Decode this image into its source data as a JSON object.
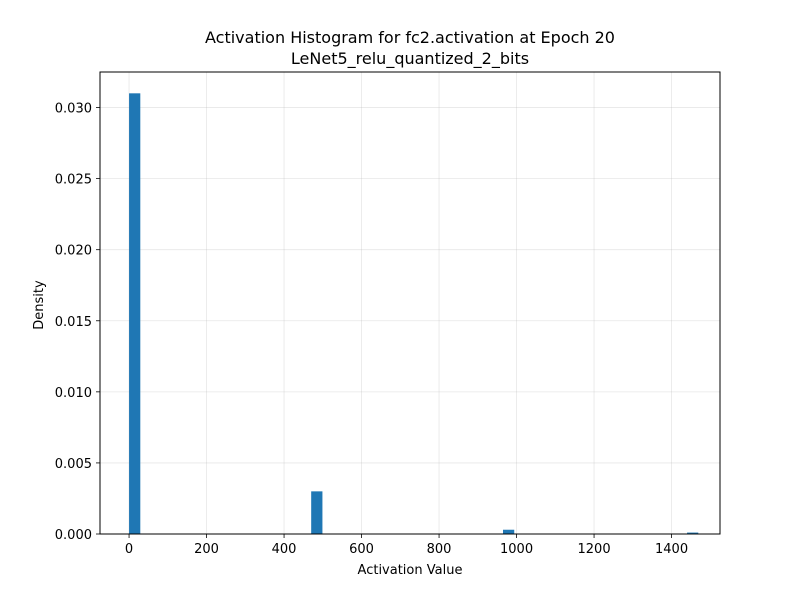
{
  "chart_data": {
    "type": "bar",
    "title": "Activation Histogram for fc2.activation at Epoch 20",
    "subtitle": "LeNet5_relu_quantized_2_bits",
    "xlabel": "Activation Value",
    "ylabel": "Density",
    "xlim": [
      -75,
      1525
    ],
    "ylim": [
      0,
      0.0325
    ],
    "grid": true,
    "bar_color": "#1f77b4",
    "bin_width": 29,
    "bars": [
      {
        "x_start": 0,
        "x_end": 29,
        "value": 0.031
      },
      {
        "x_start": 470,
        "x_end": 499,
        "value": 0.003
      },
      {
        "x_start": 965,
        "x_end": 994,
        "value": 0.0003
      },
      {
        "x_start": 1440,
        "x_end": 1469,
        "value": 0.0001
      }
    ],
    "x_ticks": [
      0,
      200,
      400,
      600,
      800,
      1000,
      1200,
      1400
    ],
    "x_tick_labels": [
      "0",
      "200",
      "400",
      "600",
      "800",
      "1000",
      "1200",
      "1400"
    ],
    "y_ticks": [
      0,
      0.005,
      0.01,
      0.015,
      0.02,
      0.025,
      0.03
    ],
    "y_tick_labels": [
      "0.000",
      "0.005",
      "0.010",
      "0.015",
      "0.020",
      "0.025",
      "0.030"
    ]
  }
}
